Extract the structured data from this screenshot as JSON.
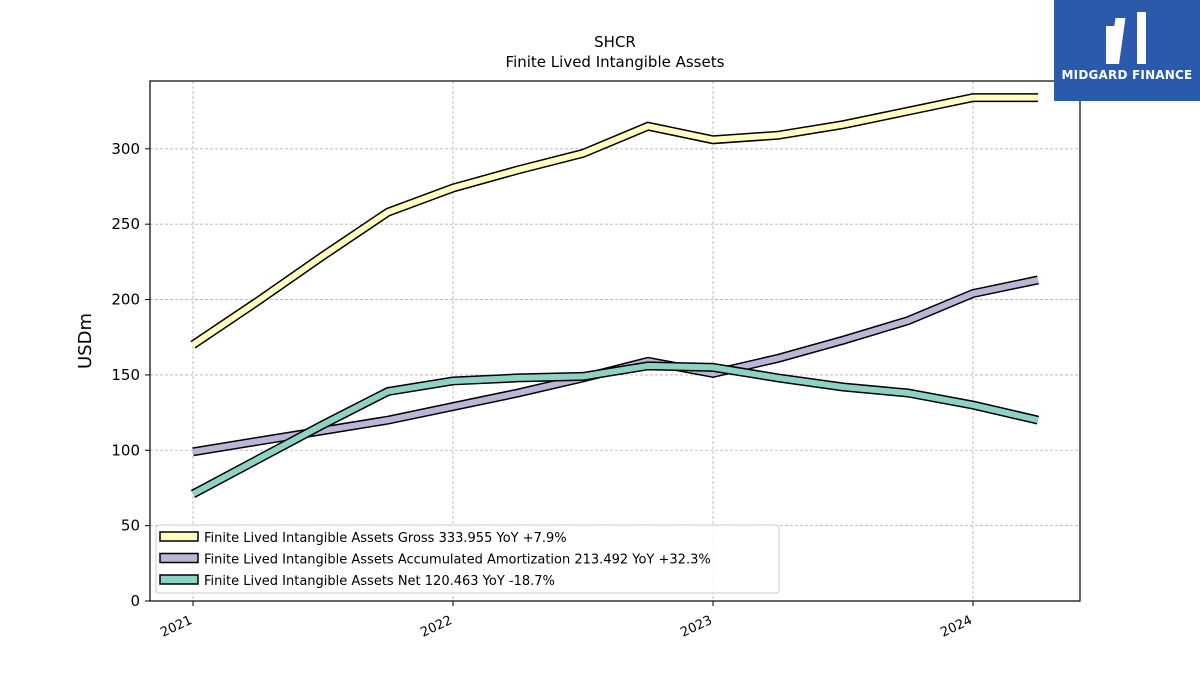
{
  "brand": {
    "name": "MIDGARD FINANCE",
    "bg_color": "#2b5aad"
  },
  "chart_data": {
    "type": "line",
    "title": "SHCR",
    "subtitle": "Finite Lived Intangible Assets",
    "xlabel": "",
    "ylabel": "USDm",
    "x": [
      "2021-01-01",
      "2021-04-01",
      "2021-07-01",
      "2021-10-01",
      "2022-01-01",
      "2022-04-01",
      "2022-07-01",
      "2022-10-01",
      "2023-01-01",
      "2023-04-01",
      "2023-07-01",
      "2023-10-01",
      "2024-01-01",
      "2024-04-01"
    ],
    "x_ticks": [
      "2021",
      "2022",
      "2023",
      "2024"
    ],
    "ylim": [
      0,
      345
    ],
    "y_ticks": [
      0,
      50,
      100,
      150,
      200,
      250,
      300
    ],
    "grid": true,
    "legend_position": "lower-left",
    "series": [
      {
        "name": "Finite Lived Intangible Assets Gross",
        "legend_label": "Finite Lived Intangible Assets Gross  333.955 YoY +7.9%",
        "color": "#ffffc0",
        "values": [
          170,
          199,
          229,
          258,
          274,
          286,
          297,
          315,
          306,
          309,
          316,
          325,
          334,
          334
        ]
      },
      {
        "name": "Finite Lived Intangible Assets Accumulated Amortization",
        "legend_label": "Finite Lived Intangible Assets Accumulated Amortization  213.492 YoY +32.3%",
        "color": "#bcb6d6",
        "values": [
          99,
          106,
          113,
          120,
          129,
          138,
          148,
          159,
          151,
          161,
          173,
          186,
          204,
          213
        ]
      },
      {
        "name": "Finite Lived Intangible Assets Net",
        "legend_label": "Finite Lived Intangible Assets Net  120.463 YoY -18.7%",
        "color": "#8dd3c4",
        "values": [
          71,
          94,
          117,
          139,
          146,
          148,
          149,
          156,
          155,
          148,
          142,
          138,
          130,
          120
        ]
      }
    ]
  }
}
